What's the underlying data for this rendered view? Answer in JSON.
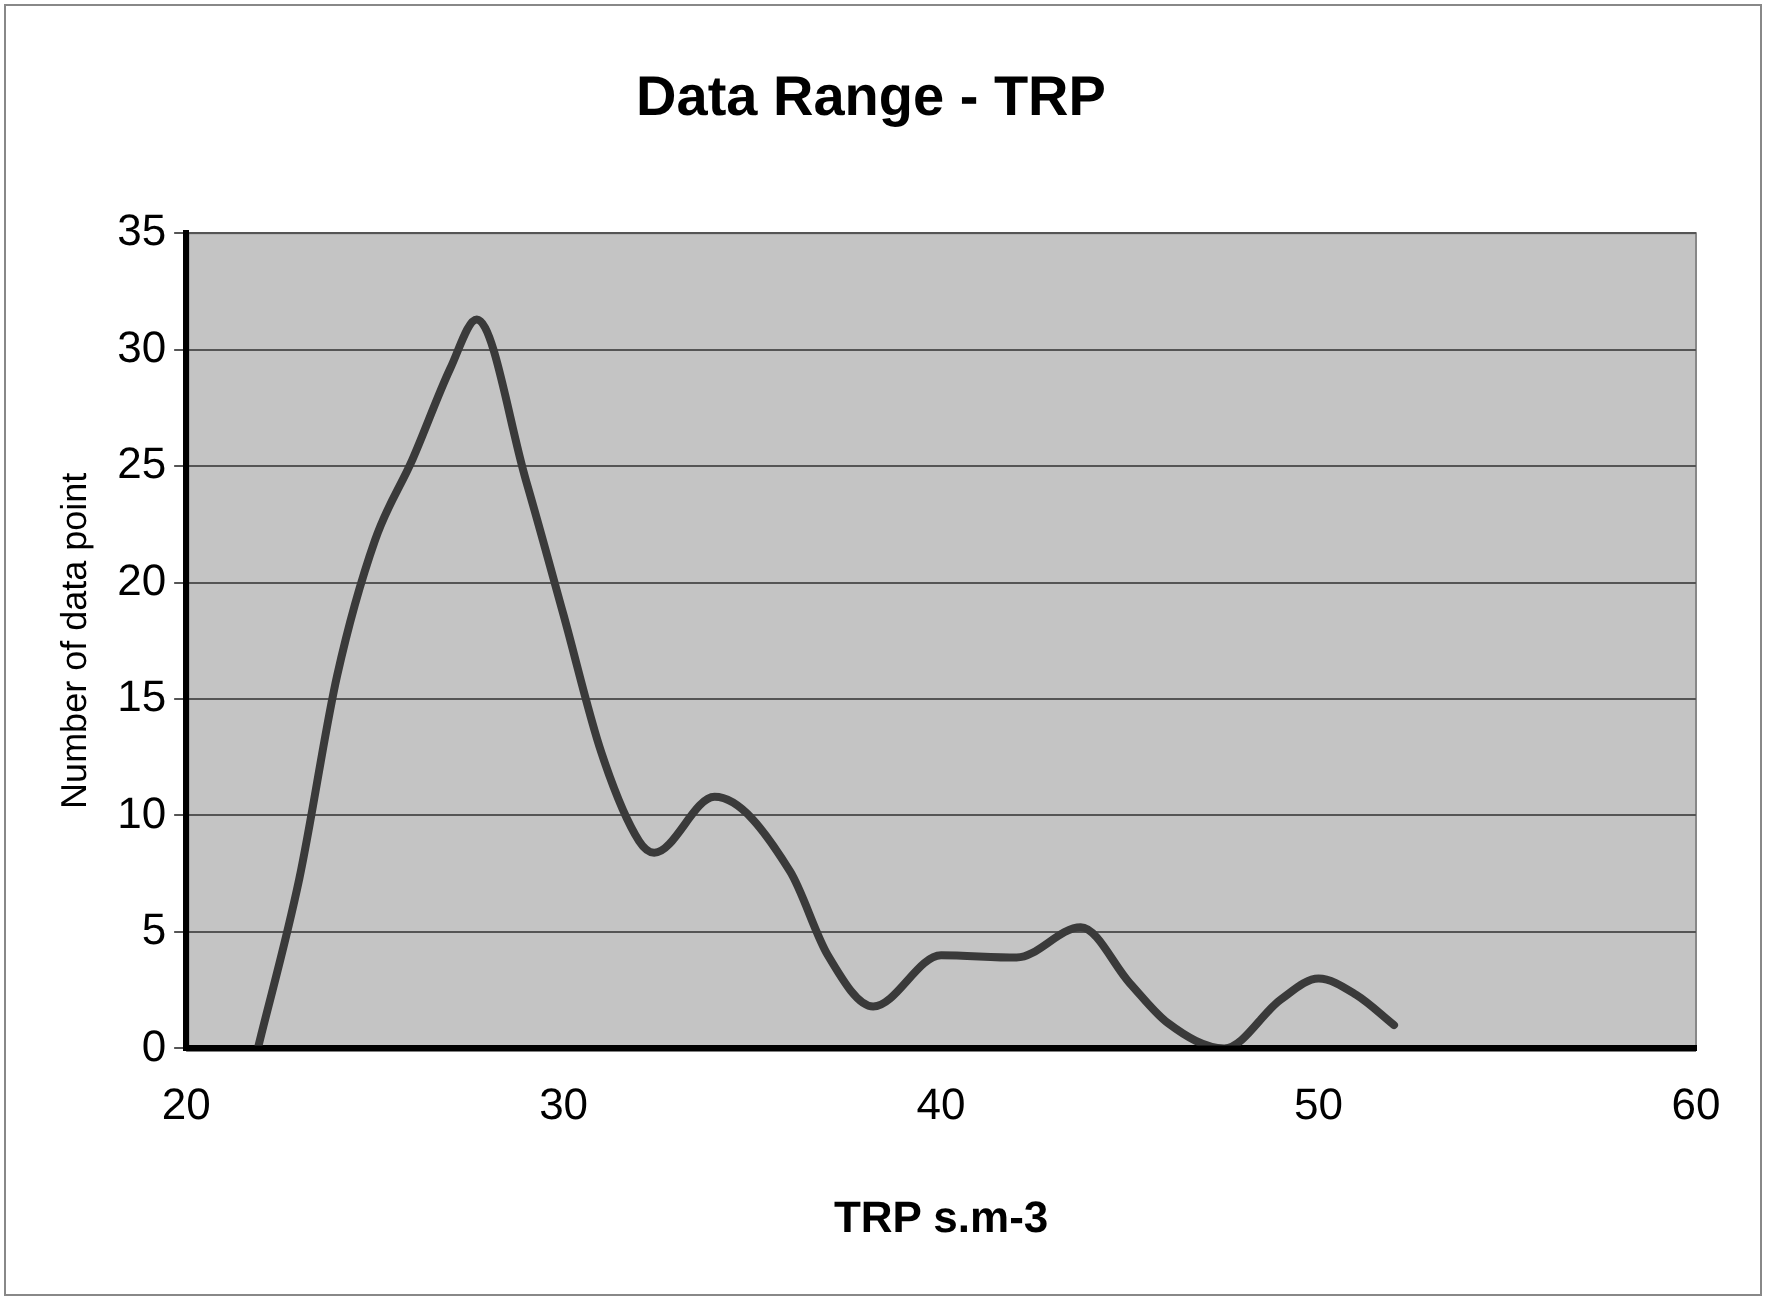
{
  "chart_data": {
    "type": "line",
    "title": "Data Range - TRP",
    "xlabel": "TRP s.m-3",
    "ylabel": "Number of data point",
    "x": [
      21.9,
      23,
      24,
      25,
      26,
      27,
      27.7,
      29,
      30,
      31,
      32,
      32.4,
      34,
      36,
      37,
      38.2,
      40,
      42,
      43.7,
      45,
      46,
      47.5,
      49,
      50,
      51,
      52
    ],
    "series": [
      {
        "color": "#3a3a3a",
        "values": [
          0,
          7.3,
          16,
          21.8,
          25.3,
          29.2,
          31.3,
          24.4,
          18.6,
          12.7,
          8.9,
          8.4,
          10.8,
          7.6,
          4,
          1.8,
          4,
          3.9,
          5.2,
          2.8,
          1.1,
          0,
          2.1,
          3,
          2.3,
          1
        ]
      }
    ],
    "xlim": [
      20,
      60
    ],
    "xticks": [
      20,
      30,
      40,
      50,
      60
    ],
    "ylim": [
      0,
      35
    ],
    "yticks": [
      0,
      5,
      10,
      15,
      20,
      25,
      30,
      35
    ],
    "grid": "y",
    "legend": false,
    "marker": "none",
    "line_style": "solid"
  }
}
